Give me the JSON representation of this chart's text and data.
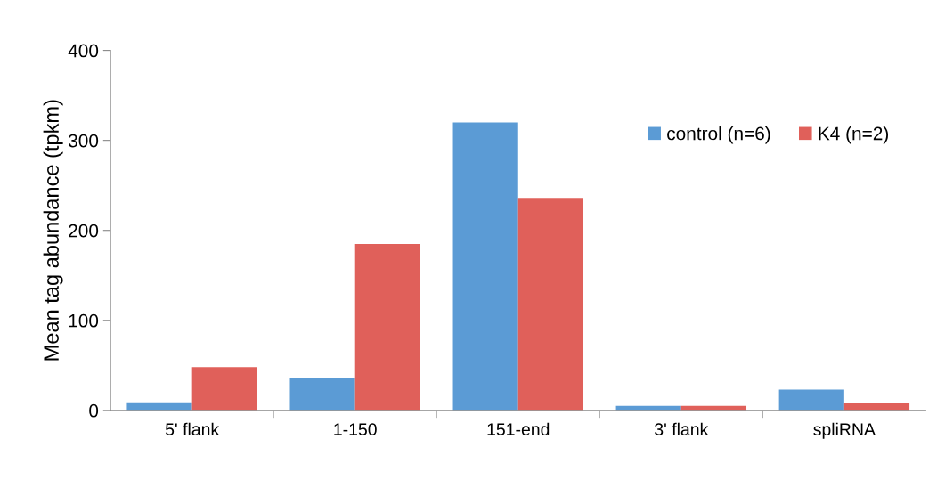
{
  "chart_data": {
    "type": "bar",
    "ylabel": "Mean tag abundance (tpkm)",
    "categories": [
      "5' flank",
      "1-150",
      "151-end",
      "3' flank",
      "spliRNA"
    ],
    "series": [
      {
        "name": "control (n=6)",
        "color": "#5b9bd5",
        "values": [
          9,
          36,
          320,
          5,
          23
        ]
      },
      {
        "name": "K4 (n=2)",
        "color": "#e0605a",
        "values": [
          48,
          185,
          236,
          5,
          8
        ]
      }
    ],
    "ylim": [
      0,
      400
    ],
    "yticks": [
      0,
      100,
      200,
      300,
      400
    ],
    "grid": false,
    "legend": "top right"
  }
}
